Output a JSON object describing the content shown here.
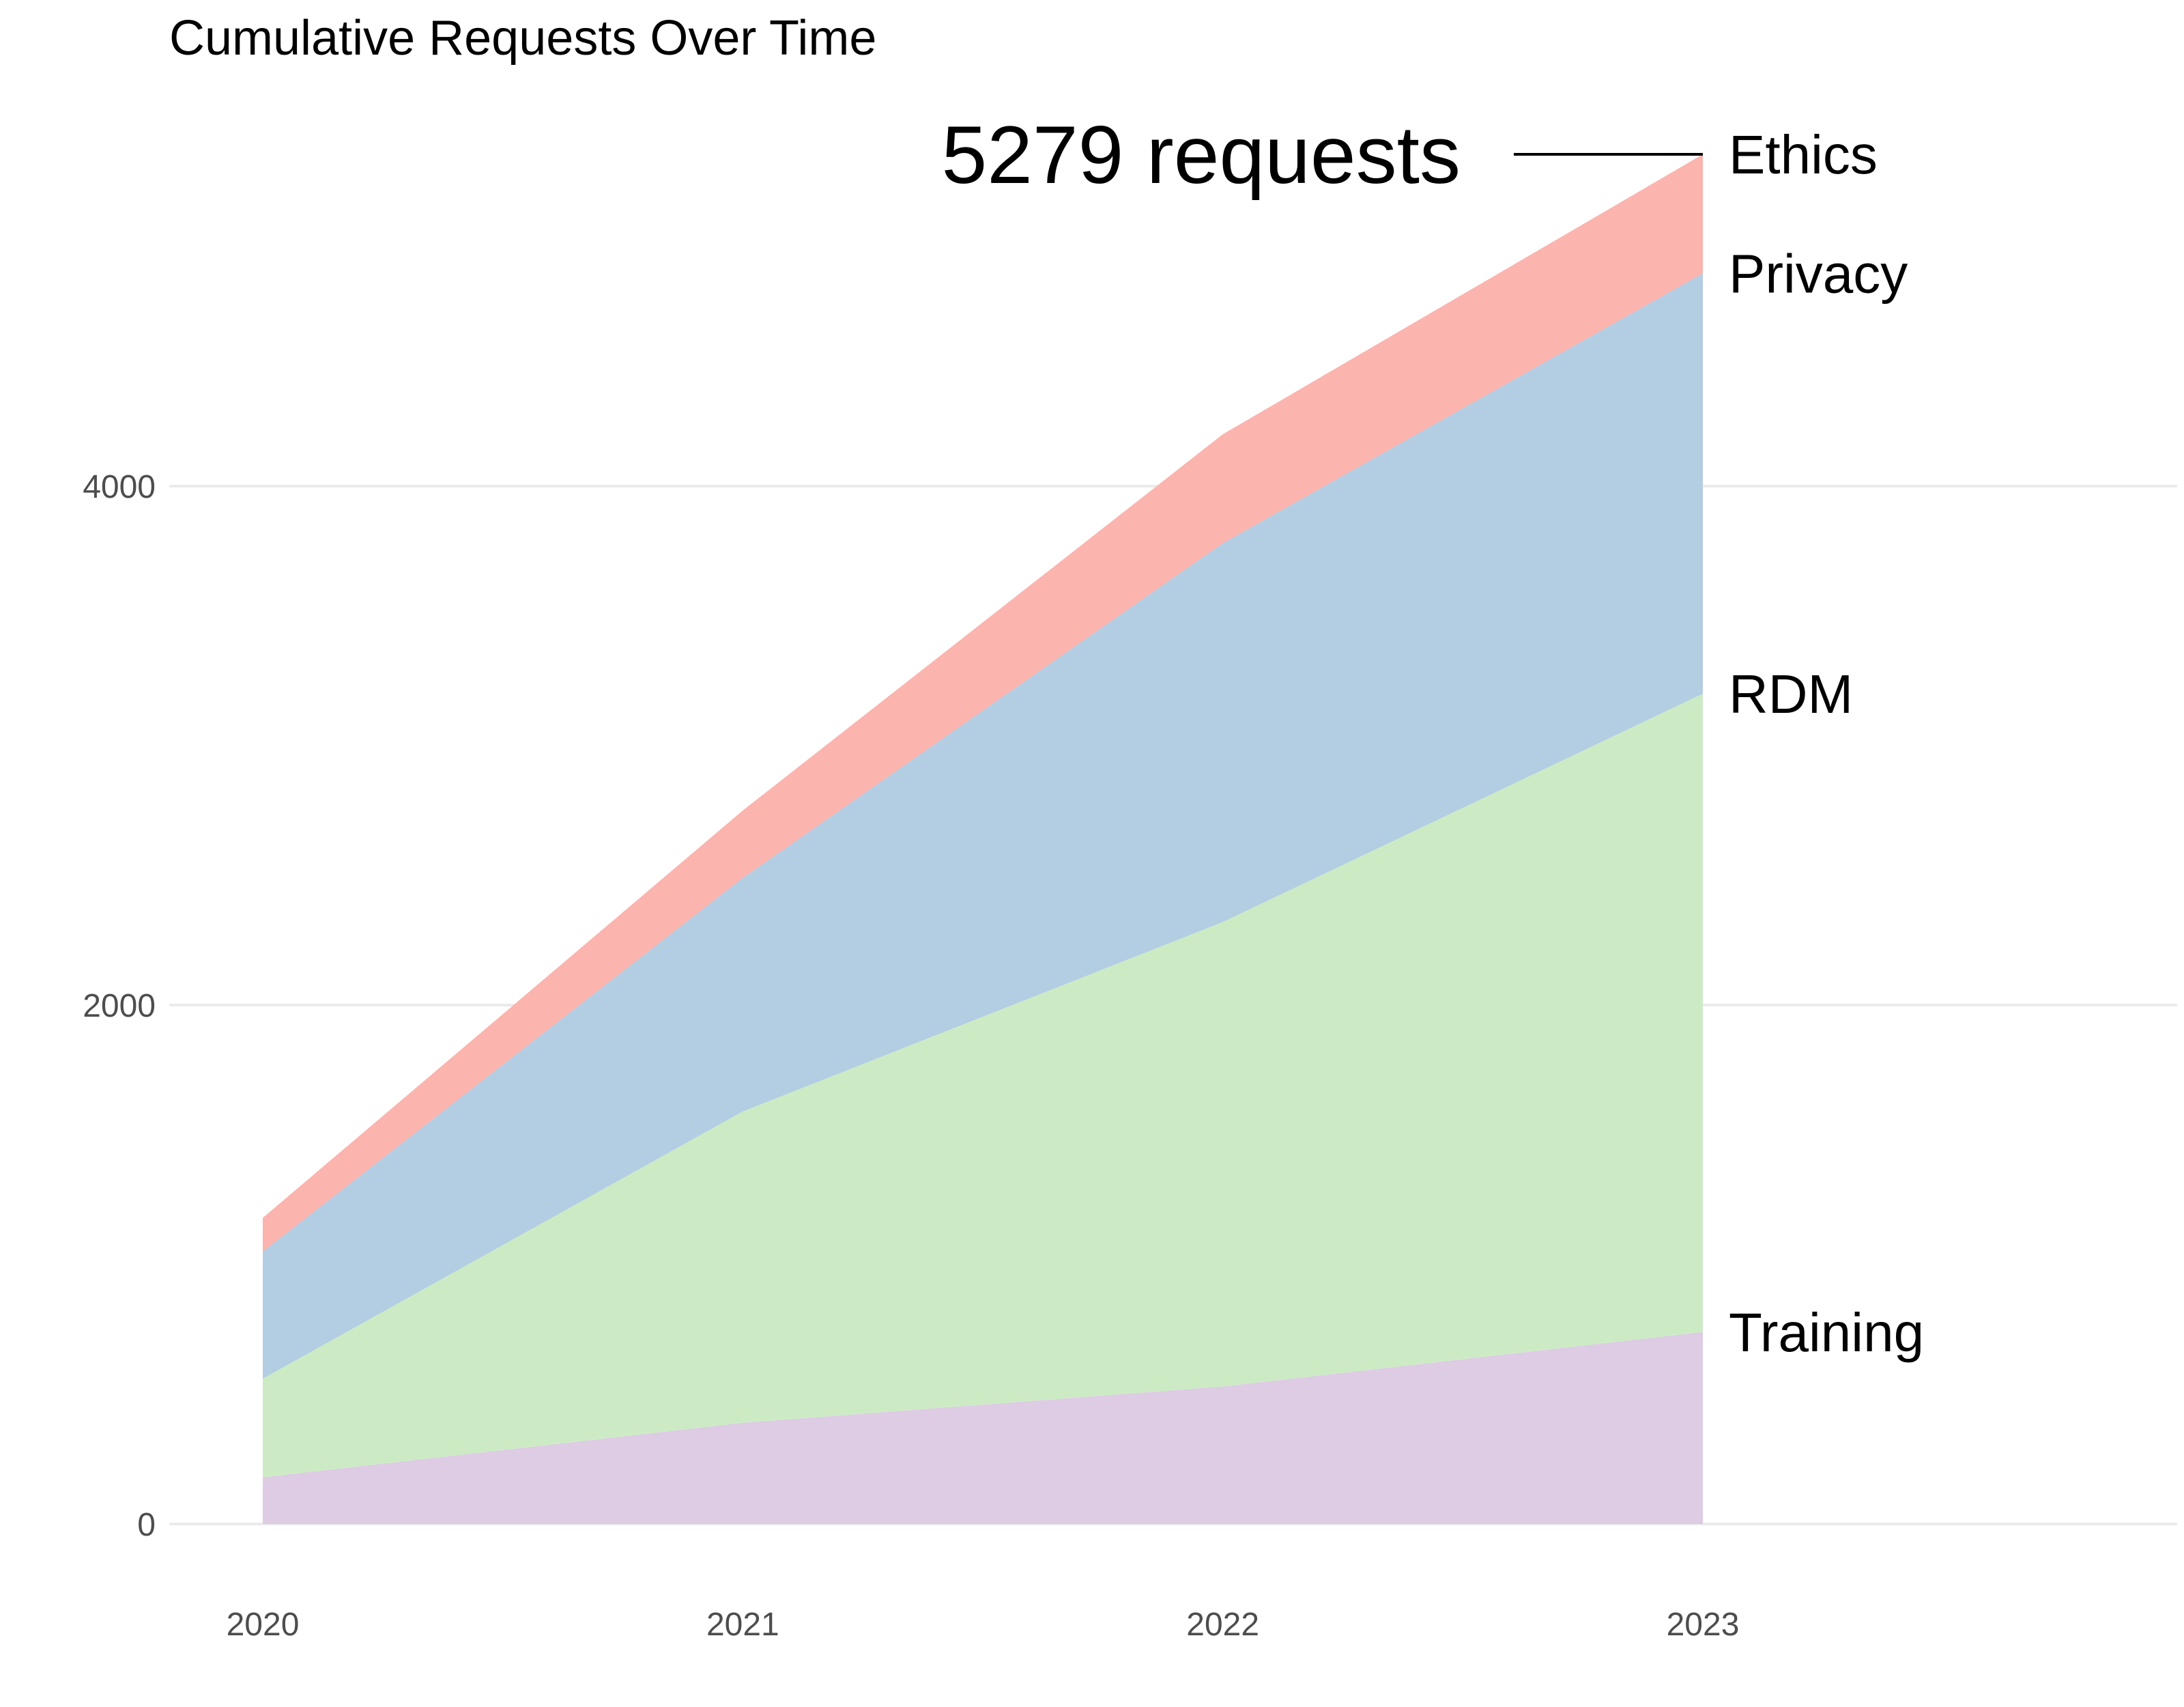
{
  "chart_data": {
    "type": "area",
    "stacked": true,
    "title": "Cumulative Requests Over Time",
    "xlabel": "",
    "ylabel": "",
    "x": [
      "2020",
      "2021",
      "2022",
      "2023"
    ],
    "y_ticks": [
      0,
      2000,
      4000
    ],
    "ylim": [
      -100,
      5400
    ],
    "grid": "horizontal",
    "legend": "none (labels at series ends)",
    "series": [
      {
        "name": "Training",
        "color": "#decbe4",
        "values": [
          180,
          390,
          530,
          740
        ]
      },
      {
        "name": "RDM",
        "color": "#ccebc5",
        "values": [
          380,
          1200,
          1790,
          2460
        ]
      },
      {
        "name": "Privacy",
        "color": "#b3cde3",
        "values": [
          490,
          900,
          1460,
          1620
        ]
      },
      {
        "name": "Ethics",
        "color": "#fbb4ae",
        "values": [
          130,
          260,
          420,
          459
        ]
      }
    ],
    "annotation": {
      "text": "5279 requests",
      "value": 5279
    }
  }
}
